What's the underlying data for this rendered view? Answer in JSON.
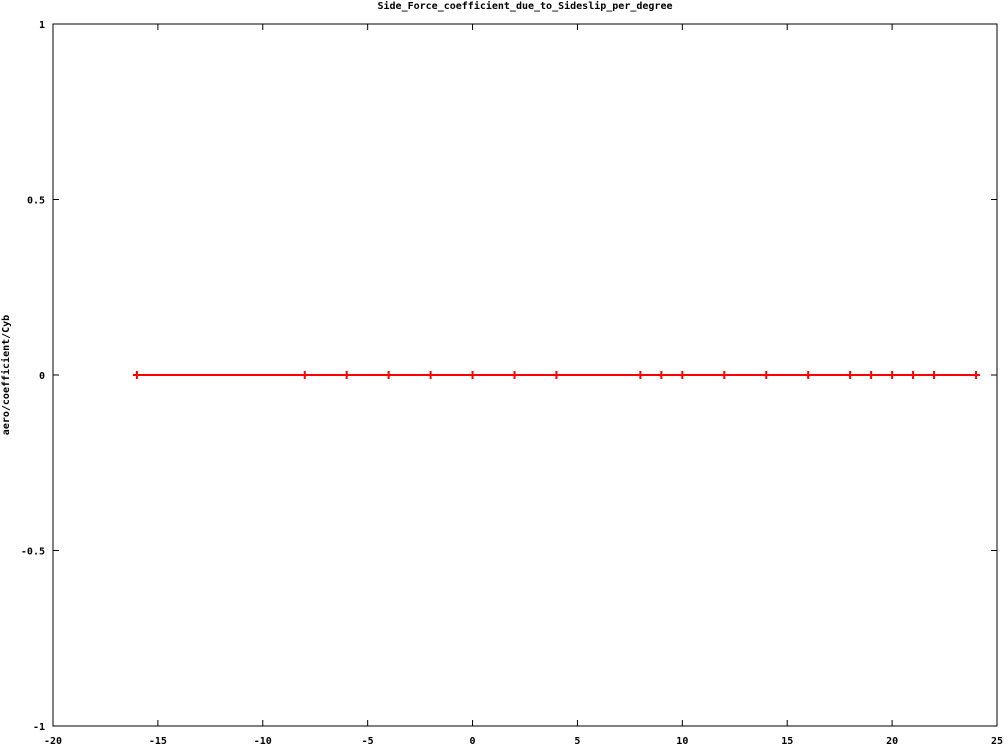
{
  "chart_data": {
    "type": "line",
    "title": "Side_Force_coefficient_due_to_Sideslip_per_degree",
    "xlabel": "",
    "ylabel": "aero/coefficient/Cyb",
    "xlim": [
      -20,
      25
    ],
    "ylim": [
      -1,
      1
    ],
    "xticks": [
      -20,
      -15,
      -10,
      -5,
      0,
      5,
      10,
      15,
      20,
      25
    ],
    "xtick_labels": [
      "-20",
      "-15",
      "-10",
      "-5",
      "0",
      "5",
      "10",
      "15",
      "20",
      "25"
    ],
    "yticks": [
      -1,
      -0.5,
      0,
      0.5,
      1
    ],
    "ytick_labels": [
      "-1",
      "-0.5",
      "0",
      "0.5",
      "1"
    ],
    "grid": false,
    "legend": "none",
    "series": [
      {
        "color": "#ff0000",
        "marker": "plus",
        "x": [
          -16,
          -8,
          -6,
          -4,
          -2,
          0,
          2,
          4,
          8,
          9,
          10,
          12,
          14,
          16,
          18,
          19,
          20,
          21,
          22,
          24
        ],
        "y": [
          0,
          0,
          0,
          0,
          0,
          0,
          0,
          0,
          0,
          0,
          0,
          0,
          0,
          0,
          0,
          0,
          0,
          0,
          0,
          0
        ]
      }
    ]
  }
}
